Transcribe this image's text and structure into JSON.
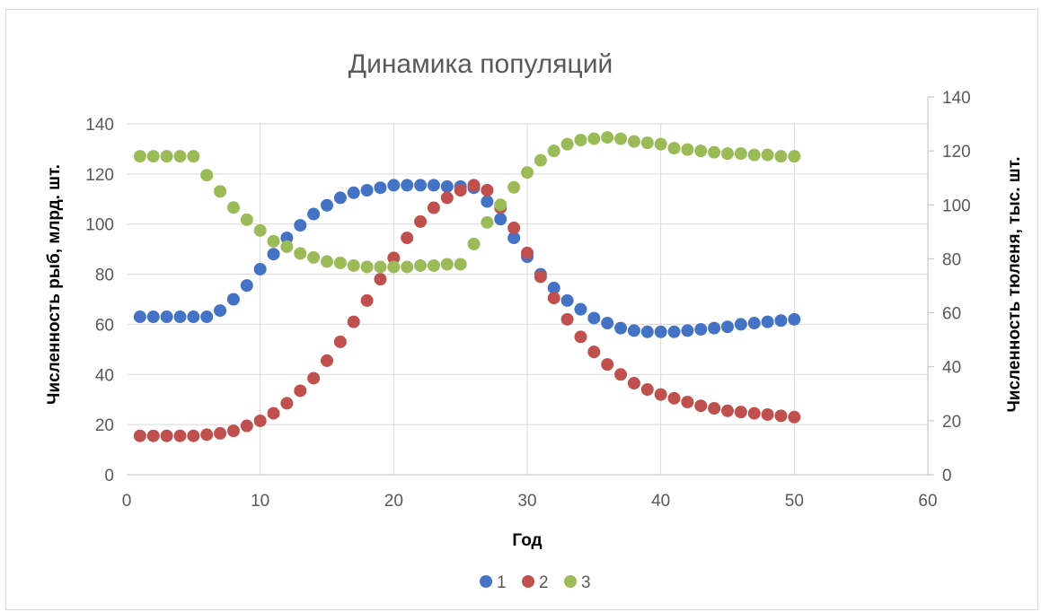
{
  "chart_data": {
    "type": "scatter",
    "title": "Динамика популяций",
    "xlabel": "Год",
    "ylabel_left": "Численность рыб, млрд. шт.",
    "ylabel_right": "Численность тюленя, тыс. шт.",
    "xlim": [
      0,
      60
    ],
    "xticks": [
      "0",
      "10",
      "20",
      "30",
      "40",
      "50",
      "60"
    ],
    "ylim_left": [
      0,
      140
    ],
    "yticks_left": [
      "0",
      "20",
      "40",
      "60",
      "80",
      "100",
      "120",
      "140"
    ],
    "ylim_right": [
      0,
      140
    ],
    "yticks_right": [
      "0",
      "20",
      "40",
      "60",
      "80",
      "100",
      "120",
      "140"
    ],
    "grid": true,
    "legend_position": "bottom",
    "x": [
      1,
      2,
      3,
      4,
      5,
      6,
      7,
      8,
      9,
      10,
      11,
      12,
      13,
      14,
      15,
      16,
      17,
      18,
      19,
      20,
      21,
      22,
      23,
      24,
      25,
      26,
      27,
      28,
      29,
      30,
      31,
      32,
      33,
      34,
      35,
      36,
      37,
      38,
      39,
      40,
      41,
      42,
      43,
      44,
      45,
      46,
      47,
      48,
      49,
      50
    ],
    "series": [
      {
        "name": "1",
        "axis": "left",
        "color": "#4472c4",
        "values": [
          63,
          63,
          63,
          63,
          63,
          63,
          65.5,
          70,
          75.5,
          82,
          88,
          94.5,
          99.5,
          104,
          107.5,
          110.5,
          112.5,
          113.5,
          114.5,
          115.5,
          115.5,
          115.5,
          115.5,
          115,
          115,
          114.5,
          109,
          102,
          94.5,
          87,
          80,
          74.5,
          69.5,
          66,
          62.5,
          60.5,
          58.5,
          57.5,
          57,
          57,
          57,
          57.5,
          58,
          58.5,
          59,
          60,
          60.5,
          61,
          61.5,
          62
        ]
      },
      {
        "name": "2",
        "axis": "left",
        "color": "#c0504d",
        "values": [
          15.5,
          15.5,
          15.5,
          15.5,
          15.5,
          16,
          16.5,
          17.5,
          19.5,
          21.5,
          24.5,
          28.5,
          33.5,
          38.5,
          45.5,
          53,
          61,
          69.5,
          78,
          86.5,
          94.5,
          101,
          106.5,
          110.5,
          113.5,
          115.5,
          113.5,
          106.5,
          98.5,
          88.5,
          79,
          70.5,
          62,
          55,
          49,
          44,
          40,
          36.5,
          34,
          32,
          30.5,
          29,
          27.5,
          26.5,
          25.5,
          25,
          24.5,
          24,
          23.5,
          23
        ]
      },
      {
        "name": "3",
        "axis": "right",
        "color": "#9bbb59",
        "values": [
          118,
          118,
          118,
          118,
          118,
          111,
          105,
          99,
          94.5,
          90.5,
          86.5,
          84.5,
          82,
          80.5,
          79,
          78.5,
          77.5,
          77,
          77,
          77,
          77,
          77.5,
          77.5,
          78,
          78,
          85.5,
          93.5,
          100,
          106.5,
          112,
          116.5,
          120,
          122.5,
          124,
          124.5,
          125,
          124.5,
          123.5,
          123,
          122.5,
          121,
          120.5,
          120,
          119.5,
          119,
          119,
          118.5,
          118.5,
          118,
          118
        ]
      }
    ]
  }
}
